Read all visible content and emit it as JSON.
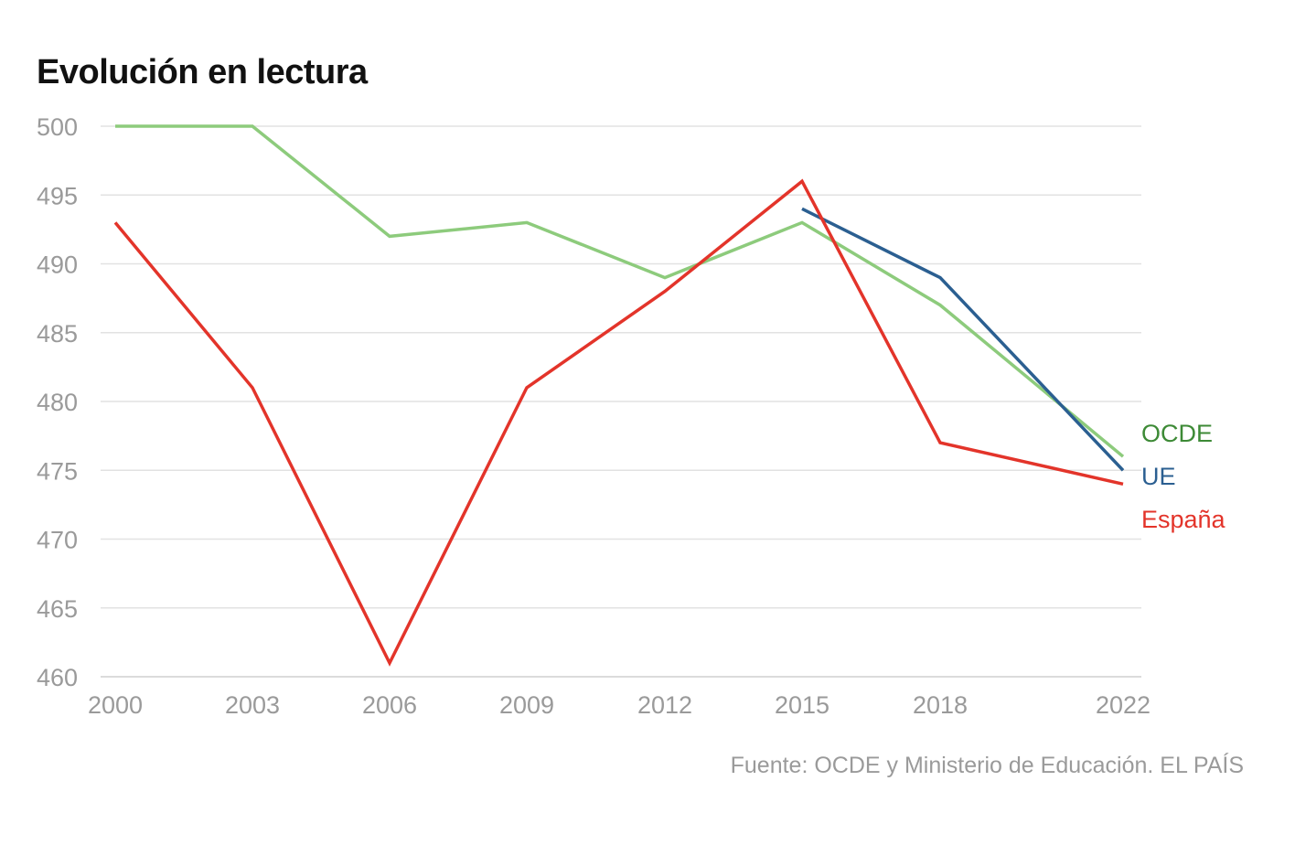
{
  "chart_data": {
    "type": "line",
    "title": "Evolución en lectura",
    "x": [
      "2000",
      "2003",
      "2006",
      "2009",
      "2012",
      "2015",
      "2018",
      "2022"
    ],
    "ylim": [
      460,
      500
    ],
    "yticks": [
      500,
      495,
      490,
      485,
      480,
      475,
      470,
      465,
      460
    ],
    "grid": true,
    "legend": "direct labels at right end",
    "series": [
      {
        "name": "OCDE",
        "color": "#8dcb7c",
        "label_color": "#3d8a36",
        "values": [
          500,
          500,
          492,
          493,
          489,
          493,
          487,
          476
        ]
      },
      {
        "name": "UE",
        "color": "#2b5f91",
        "label_color": "#2b5f91",
        "values": [
          null,
          null,
          null,
          null,
          null,
          494,
          489,
          475
        ]
      },
      {
        "name": "España",
        "color": "#e3342a",
        "label_color": "#e3342a",
        "values": [
          493,
          481,
          461,
          481,
          488,
          496,
          477,
          474
        ]
      }
    ],
    "source": "Fuente: OCDE y Ministerio de Educación. EL PAÍS"
  }
}
